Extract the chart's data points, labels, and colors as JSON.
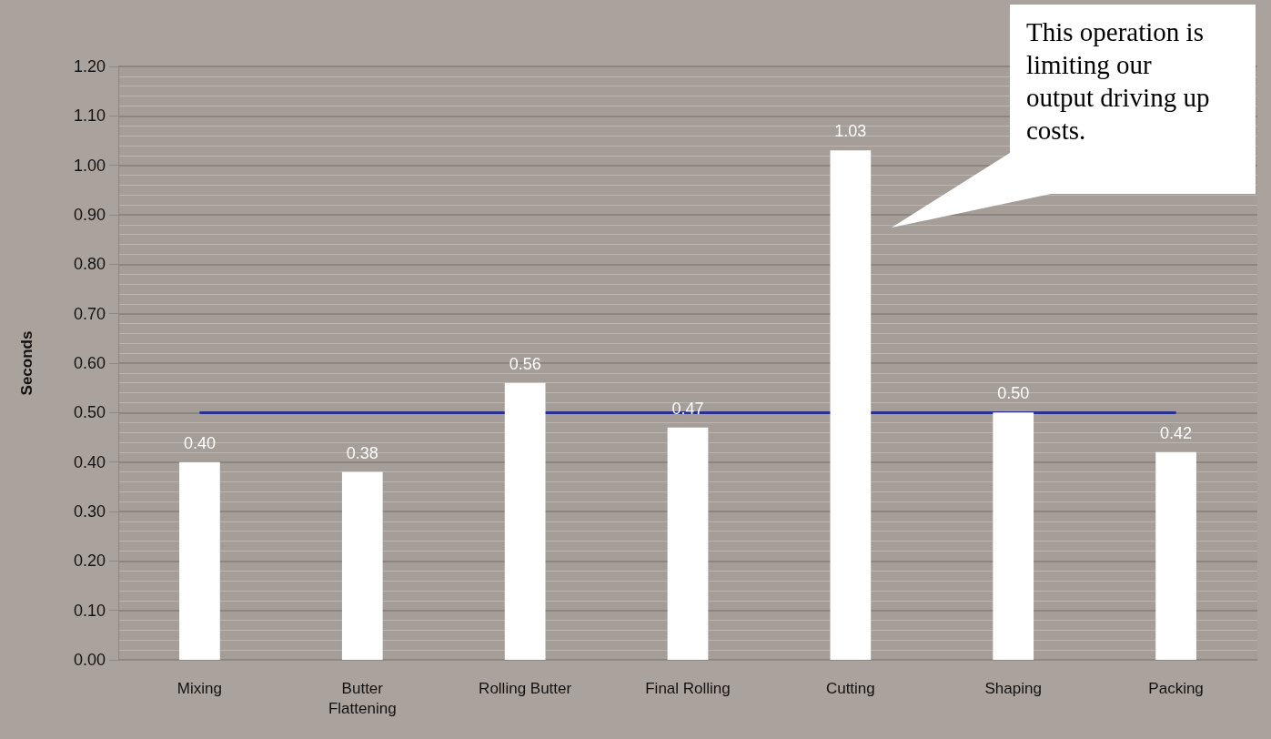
{
  "chart_data": {
    "type": "bar",
    "ylabel": "Seconds",
    "categories": [
      "Mixing",
      "Butter\nFlattening",
      "Rolling Butter",
      "Final Rolling",
      "Cutting",
      "Shaping",
      "Packing"
    ],
    "values": [
      0.4,
      0.38,
      0.56,
      0.47,
      1.03,
      0.5,
      0.42
    ],
    "color": "#ffffff",
    "ylim": [
      0,
      1.2
    ],
    "yticks": [
      {
        "value": 0,
        "label": "0.00"
      },
      {
        "value": 0.1,
        "label": "0.10"
      },
      {
        "value": 0.2,
        "label": "0.20"
      },
      {
        "value": 0.3,
        "label": "0.30"
      },
      {
        "value": 0.4,
        "label": "0.40"
      },
      {
        "value": 0.5,
        "label": "0.50"
      },
      {
        "value": 0.6,
        "label": "0.60"
      },
      {
        "value": 0.7,
        "label": "0.70"
      },
      {
        "value": 0.8,
        "label": "0.80"
      },
      {
        "value": 0.9,
        "label": "0.90"
      },
      {
        "value": 1.0,
        "label": "1.00"
      },
      {
        "value": 1.1,
        "label": "1.10"
      },
      {
        "value": 1.2,
        "label": "1.20"
      }
    ],
    "ref_lines": [
      {
        "axis": "y",
        "value": 0.5,
        "color": "#2b2f8f"
      }
    ],
    "annotations": [
      "This operation is limiting our output driving up costs."
    ],
    "value_labels": [
      "0.40",
      "0.38",
      "0.56",
      "0.47",
      "1.03",
      "0.50",
      "0.42"
    ],
    "grid": "y"
  }
}
